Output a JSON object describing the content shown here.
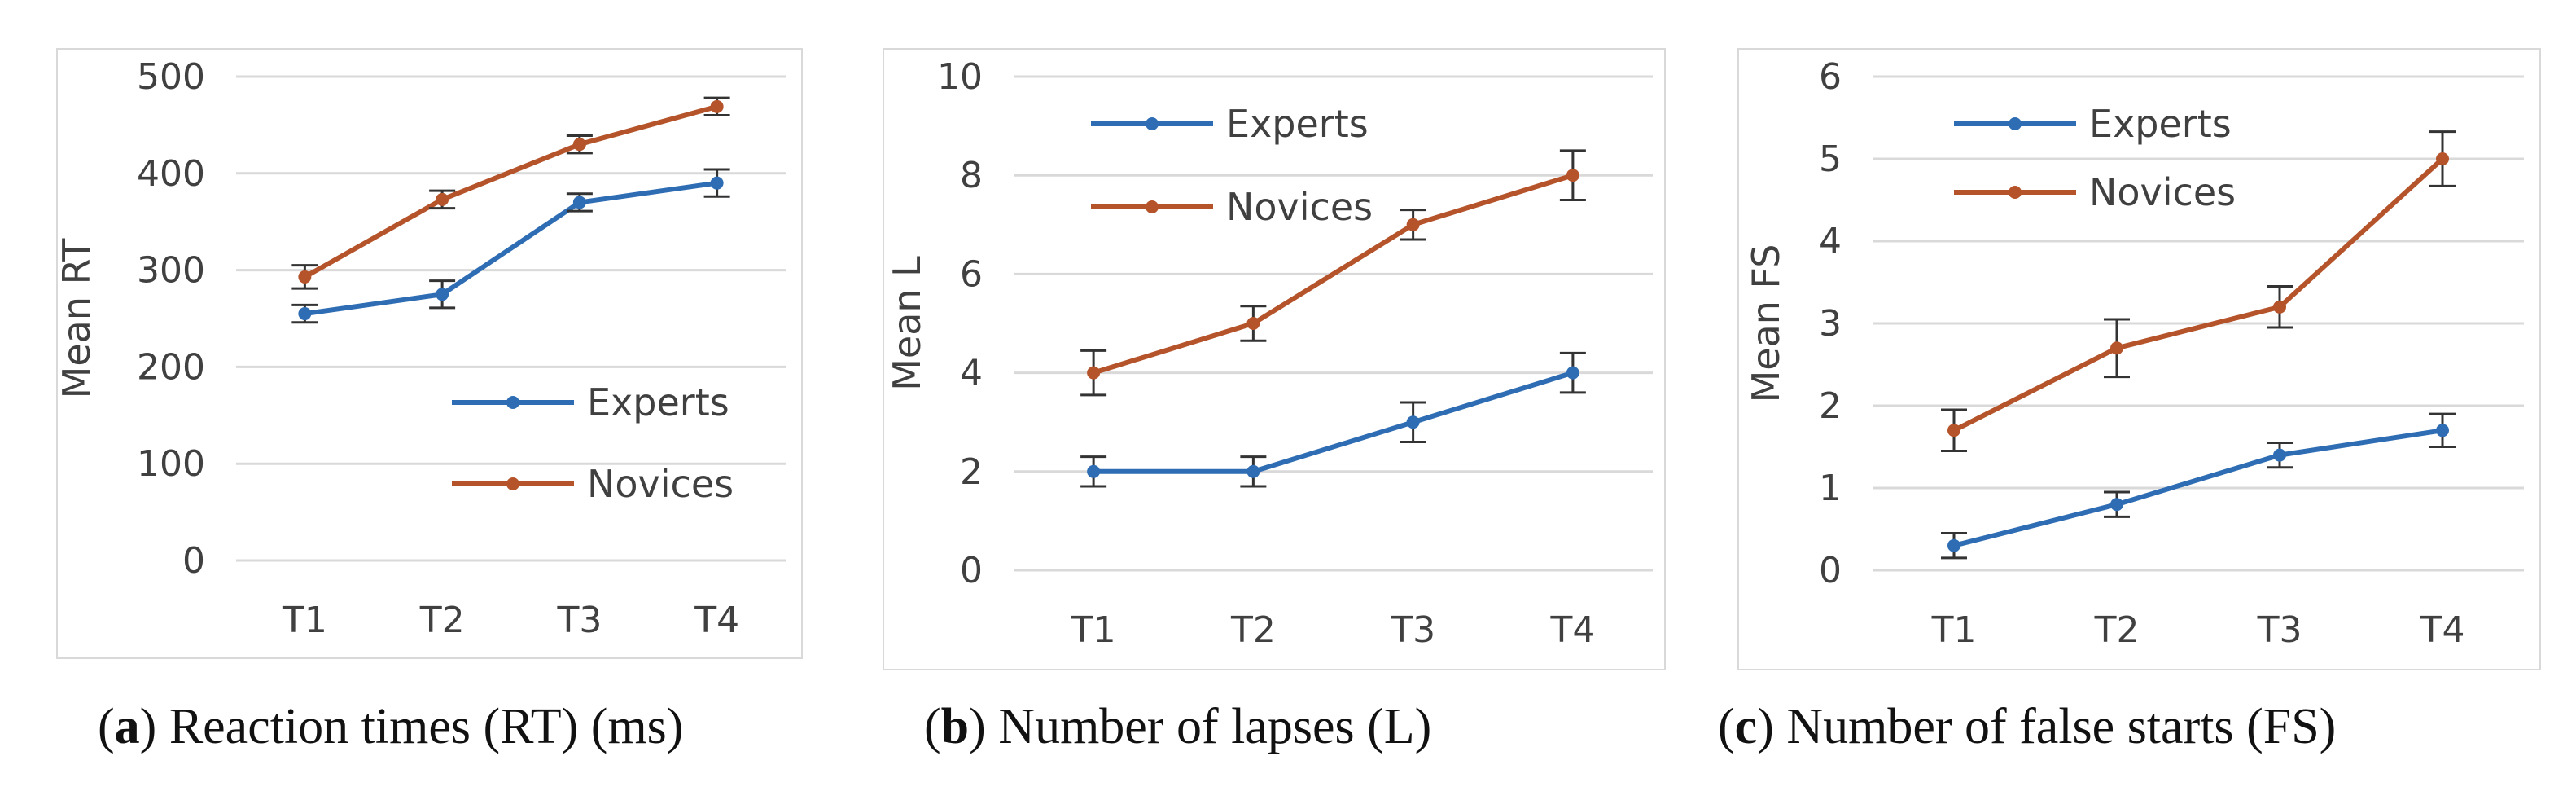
{
  "chart_data": [
    {
      "type": "line",
      "panel": "a",
      "caption_letter": "a",
      "caption_text": " Reaction times (RT) (ms)",
      "ylabel": "Mean RT",
      "xlabel": "",
      "categories": [
        "T1",
        "T2",
        "T3",
        "T4"
      ],
      "ylim": [
        0,
        500
      ],
      "yticks": [
        0,
        100,
        200,
        300,
        400,
        500
      ],
      "legend_position": "bottom-right",
      "series": [
        {
          "name": "Experts",
          "color": "#2E6DB4",
          "values": [
            255,
            275,
            370,
            390
          ],
          "errors": [
            9,
            14,
            9,
            14
          ]
        },
        {
          "name": "Novices",
          "color": "#B5532A",
          "values": [
            293,
            373,
            430,
            469
          ],
          "errors": [
            12,
            9,
            9,
            9
          ]
        }
      ]
    },
    {
      "type": "line",
      "panel": "b",
      "caption_letter": "b",
      "caption_text": " Number of lapses (L)",
      "ylabel": "Mean L",
      "xlabel": "",
      "categories": [
        "T1",
        "T2",
        "T3",
        "T4"
      ],
      "ylim": [
        0,
        10
      ],
      "yticks": [
        0,
        2,
        4,
        6,
        8,
        10
      ],
      "legend_position": "top-left",
      "series": [
        {
          "name": "Experts",
          "color": "#2E6DB4",
          "values": [
            2,
            2,
            3,
            4
          ],
          "errors": [
            0.3,
            0.3,
            0.4,
            0.4
          ]
        },
        {
          "name": "Novices",
          "color": "#B5532A",
          "values": [
            4,
            5,
            7,
            8
          ],
          "errors": [
            0.45,
            0.35,
            0.3,
            0.5
          ]
        }
      ]
    },
    {
      "type": "line",
      "panel": "c",
      "caption_letter": "c",
      "caption_text": " Number of false starts (FS)",
      "ylabel": "Mean FS",
      "xlabel": "",
      "categories": [
        "T1",
        "T2",
        "T3",
        "T4"
      ],
      "ylim": [
        0,
        6
      ],
      "yticks": [
        0,
        1,
        2,
        3,
        4,
        5,
        6
      ],
      "legend_position": "top-left",
      "series": [
        {
          "name": "Experts",
          "color": "#2E6DB4",
          "values": [
            0.3,
            0.8,
            1.4,
            1.7
          ],
          "errors": [
            0.15,
            0.15,
            0.15,
            0.2
          ]
        },
        {
          "name": "Novices",
          "color": "#B5532A",
          "values": [
            1.7,
            2.7,
            3.2,
            5.0
          ],
          "errors": [
            0.25,
            0.35,
            0.25,
            0.33
          ]
        }
      ]
    }
  ]
}
